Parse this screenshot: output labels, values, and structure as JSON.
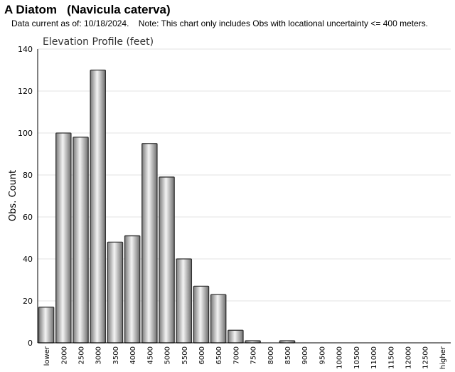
{
  "header": {
    "title": "A Diatom   (Navicula caterva)",
    "subtitle": "Data current as of: 10/18/2024.    Note: This chart only includes Obs with locational uncertainty <= 400 meters."
  },
  "chart_data": {
    "type": "bar",
    "title": "Elevation Profile (feet)",
    "xlabel": "",
    "ylabel": "Obs. Count",
    "ylim": [
      0,
      140
    ],
    "yticks": [
      0,
      20,
      40,
      60,
      80,
      100,
      120,
      140
    ],
    "grid": true,
    "categories": [
      "lower",
      "2000",
      "2500",
      "3000",
      "3500",
      "4000",
      "4500",
      "5000",
      "5500",
      "6000",
      "6500",
      "7000",
      "7500",
      "8000",
      "8500",
      "9000",
      "9500",
      "10000",
      "10500",
      "11000",
      "11500",
      "12000",
      "12500",
      "higher"
    ],
    "values": [
      17,
      100,
      98,
      130,
      48,
      51,
      95,
      79,
      40,
      27,
      23,
      6,
      1,
      0,
      1,
      0,
      0,
      0,
      0,
      0,
      0,
      0,
      0,
      0
    ]
  }
}
